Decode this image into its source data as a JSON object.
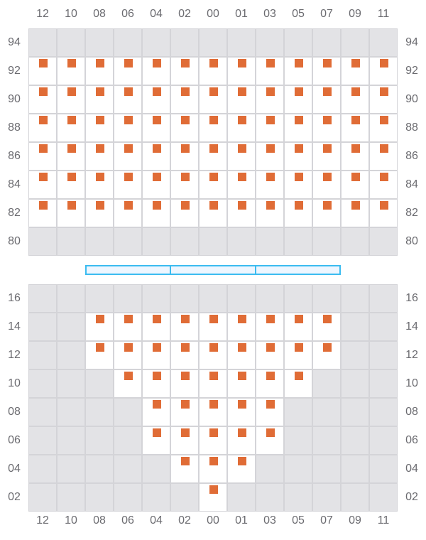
{
  "columns": [
    "12",
    "10",
    "08",
    "06",
    "04",
    "02",
    "00",
    "01",
    "03",
    "05",
    "07",
    "09",
    "11"
  ],
  "colors": {
    "seat": "#e06c36",
    "open_cell": "#ffffff",
    "closed_cell": "#e3e3e6",
    "stage_border": "#3bbcf0",
    "stage_fill": "#eef6ff"
  },
  "upper_section": {
    "rows": [
      {
        "label": "94",
        "seats": []
      },
      {
        "label": "92",
        "seats": [
          "12",
          "10",
          "08",
          "06",
          "04",
          "02",
          "00",
          "01",
          "03",
          "05",
          "07",
          "09",
          "11"
        ]
      },
      {
        "label": "90",
        "seats": [
          "12",
          "10",
          "08",
          "06",
          "04",
          "02",
          "00",
          "01",
          "03",
          "05",
          "07",
          "09",
          "11"
        ]
      },
      {
        "label": "88",
        "seats": [
          "12",
          "10",
          "08",
          "06",
          "04",
          "02",
          "00",
          "01",
          "03",
          "05",
          "07",
          "09",
          "11"
        ]
      },
      {
        "label": "86",
        "seats": [
          "12",
          "10",
          "08",
          "06",
          "04",
          "02",
          "00",
          "01",
          "03",
          "05",
          "07",
          "09",
          "11"
        ]
      },
      {
        "label": "84",
        "seats": [
          "12",
          "10",
          "08",
          "06",
          "04",
          "02",
          "00",
          "01",
          "03",
          "05",
          "07",
          "09",
          "11"
        ]
      },
      {
        "label": "82",
        "seats": [
          "12",
          "10",
          "08",
          "06",
          "04",
          "02",
          "00",
          "01",
          "03",
          "05",
          "07",
          "09",
          "11"
        ]
      },
      {
        "label": "80",
        "seats": []
      }
    ]
  },
  "stage": {
    "segments": 3
  },
  "lower_section": {
    "rows": [
      {
        "label": "16",
        "seats": []
      },
      {
        "label": "14",
        "seats": [
          "08",
          "06",
          "04",
          "02",
          "00",
          "01",
          "03",
          "05",
          "07"
        ]
      },
      {
        "label": "12",
        "seats": [
          "08",
          "06",
          "04",
          "02",
          "00",
          "01",
          "03",
          "05",
          "07"
        ]
      },
      {
        "label": "10",
        "seats": [
          "06",
          "04",
          "02",
          "00",
          "01",
          "03",
          "05"
        ]
      },
      {
        "label": "08",
        "seats": [
          "04",
          "02",
          "00",
          "01",
          "03"
        ]
      },
      {
        "label": "06",
        "seats": [
          "04",
          "02",
          "00",
          "01",
          "03"
        ]
      },
      {
        "label": "04",
        "seats": [
          "02",
          "00",
          "01"
        ]
      },
      {
        "label": "02",
        "seats": [
          "00"
        ]
      }
    ]
  }
}
